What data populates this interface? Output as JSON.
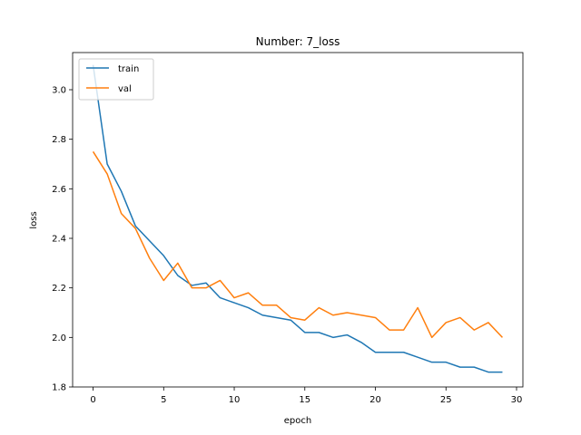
{
  "chart_data": {
    "type": "line",
    "title": "Number: 7_loss",
    "xlabel": "epoch",
    "ylabel": "loss",
    "xlim": [
      -1.45,
      30.45
    ],
    "ylim": [
      1.8,
      3.15
    ],
    "xticks": [
      0,
      5,
      10,
      15,
      20,
      25,
      30
    ],
    "yticks": [
      1.8,
      2.0,
      2.2,
      2.4,
      2.6,
      2.8,
      3.0
    ],
    "grid": false,
    "legend": {
      "position": "upper-left"
    },
    "x": [
      0,
      1,
      2,
      3,
      4,
      5,
      6,
      7,
      8,
      9,
      10,
      11,
      12,
      13,
      14,
      15,
      16,
      17,
      18,
      19,
      20,
      21,
      22,
      23,
      24,
      25,
      26,
      27,
      28,
      29
    ],
    "series": [
      {
        "name": "train",
        "color": "#1f77b4",
        "values": [
          3.1,
          2.7,
          2.59,
          2.45,
          2.39,
          2.33,
          2.25,
          2.21,
          2.22,
          2.16,
          2.14,
          2.12,
          2.09,
          2.08,
          2.07,
          2.02,
          2.02,
          2.0,
          2.01,
          1.98,
          1.94,
          1.94,
          1.94,
          1.92,
          1.9,
          1.9,
          1.88,
          1.88,
          1.86,
          1.86
        ]
      },
      {
        "name": "val",
        "color": "#ff7f0e",
        "values": [
          2.75,
          2.66,
          2.5,
          2.44,
          2.32,
          2.23,
          2.3,
          2.2,
          2.2,
          2.23,
          2.16,
          2.18,
          2.13,
          2.13,
          2.08,
          2.07,
          2.12,
          2.09,
          2.1,
          2.09,
          2.08,
          2.03,
          2.03,
          2.12,
          2.0,
          2.06,
          2.08,
          2.03,
          2.06,
          2.0
        ]
      }
    ]
  }
}
